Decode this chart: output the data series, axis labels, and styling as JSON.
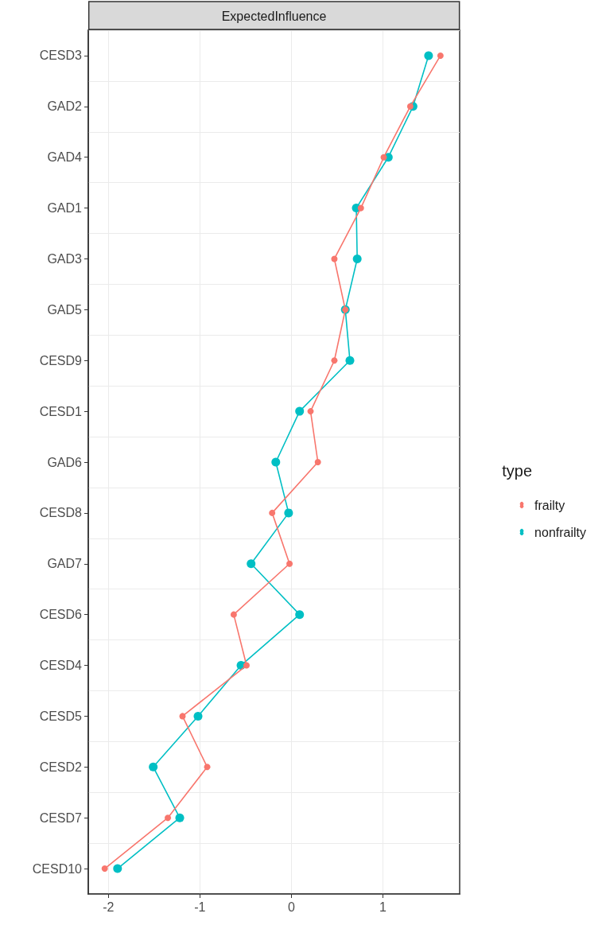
{
  "chart_data": {
    "type": "line",
    "title": "ExpectedInfluence",
    "legend_title": "type",
    "orientation": "horizontal",
    "categories": [
      "CESD3",
      "GAD2",
      "GAD4",
      "GAD1",
      "GAD3",
      "GAD5",
      "CESD9",
      "CESD1",
      "GAD6",
      "CESD8",
      "GAD7",
      "CESD6",
      "CESD4",
      "CESD5",
      "CESD2",
      "CESD7",
      "CESD10"
    ],
    "series": [
      {
        "name": "frailty",
        "color": "#f8766d",
        "values": [
          1.63,
          1.3,
          1.01,
          0.76,
          0.47,
          0.59,
          0.47,
          0.21,
          0.29,
          -0.21,
          -0.02,
          -0.63,
          -0.49,
          -1.19,
          -0.92,
          -1.35,
          -2.04
        ]
      },
      {
        "name": "nonfrailty",
        "color": "#00bfc4",
        "values": [
          1.5,
          1.33,
          1.06,
          0.71,
          0.72,
          0.59,
          0.64,
          0.09,
          -0.17,
          -0.03,
          -0.44,
          0.09,
          -0.55,
          -1.02,
          -1.51,
          -1.22,
          -1.9
        ]
      }
    ],
    "xlim": [
      -2.22,
      1.84
    ],
    "xticks": [
      -2,
      -1,
      0,
      1
    ],
    "grid": true,
    "legend": "right",
    "marker": "circle",
    "line_style": "solid"
  }
}
